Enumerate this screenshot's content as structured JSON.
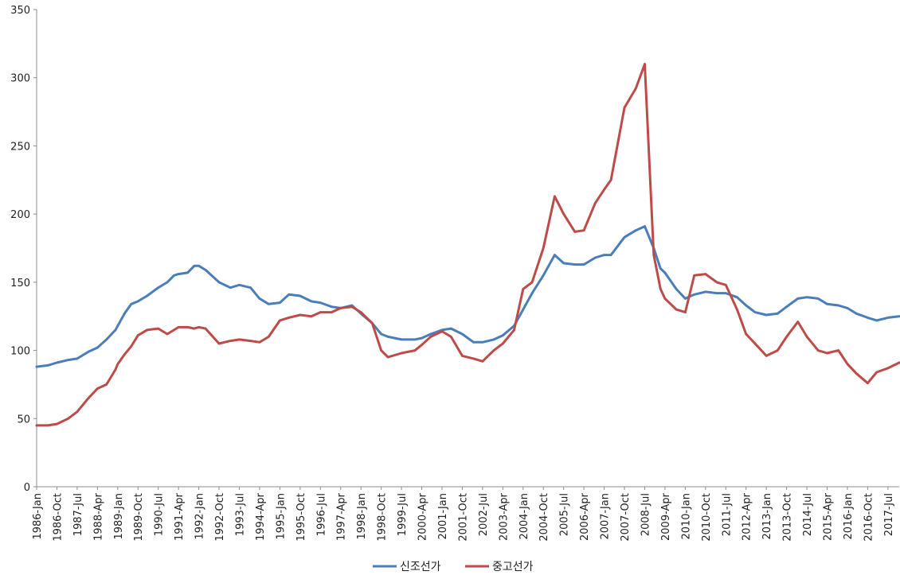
{
  "chart_data": {
    "type": "line",
    "title": "",
    "xlabel": "",
    "ylabel": "",
    "ylim": [
      0,
      350
    ],
    "yticks": [
      0,
      50,
      100,
      150,
      200,
      250,
      300,
      350
    ],
    "x_range": [
      "1986-Jan",
      "2017-Dec"
    ],
    "x_tick_labels": [
      "1986-Jan",
      "1986-Oct",
      "1987-Jul",
      "1988-Apr",
      "1989-Jan",
      "1989-Oct",
      "1990-Jul",
      "1991-Apr",
      "1992-Jan",
      "1992-Oct",
      "1993-Jul",
      "1994-Apr",
      "1995-Jan",
      "1995-Oct",
      "1996-Jul",
      "1997-Apr",
      "1998-Jan",
      "1998-Oct",
      "1999-Jul",
      "2000-Apr",
      "2001-Jan",
      "2001-Oct",
      "2002-Jul",
      "2003-Apr",
      "2004-Jan",
      "2004-Oct",
      "2005-Jul",
      "2006-Apr",
      "2007-Jan",
      "2007-Oct",
      "2008-Jul",
      "2009-Apr",
      "2010-Jan",
      "2010-Oct",
      "2011-Jul",
      "2012-Apr",
      "2013-Jan",
      "2013-Oct",
      "2014-Jul",
      "2015-Apr",
      "2016-Jan",
      "2016-Oct",
      "2017-Jul"
    ],
    "grid": false,
    "legend_position": "bottom",
    "series": [
      {
        "name": "신조선가",
        "color": "#4a7ebb",
        "points": [
          [
            "1986-Jan",
            88
          ],
          [
            "1986-Jun",
            89
          ],
          [
            "1986-Oct",
            91
          ],
          [
            "1987-Mar",
            93
          ],
          [
            "1987-Jul",
            94
          ],
          [
            "1987-Dec",
            99
          ],
          [
            "1988-Apr",
            102
          ],
          [
            "1988-Aug",
            108
          ],
          [
            "1988-Dec",
            115
          ],
          [
            "1989-Jan",
            118
          ],
          [
            "1989-Apr",
            127
          ],
          [
            "1989-Jul",
            134
          ],
          [
            "1989-Oct",
            136
          ],
          [
            "1990-Feb",
            140
          ],
          [
            "1990-Jul",
            146
          ],
          [
            "1990-Nov",
            150
          ],
          [
            "1991-Feb",
            155
          ],
          [
            "1991-Apr",
            156
          ],
          [
            "1991-Aug",
            157
          ],
          [
            "1991-Nov",
            162
          ],
          [
            "1992-Jan",
            162
          ],
          [
            "1992-Apr",
            159
          ],
          [
            "1992-Oct",
            150
          ],
          [
            "1993-Mar",
            146
          ],
          [
            "1993-Jul",
            148
          ],
          [
            "1993-Dec",
            146
          ],
          [
            "1994-Apr",
            138
          ],
          [
            "1994-Aug",
            134
          ],
          [
            "1995-Jan",
            135
          ],
          [
            "1995-May",
            141
          ],
          [
            "1995-Oct",
            140
          ],
          [
            "1996-Mar",
            136
          ],
          [
            "1996-Jul",
            135
          ],
          [
            "1996-Dec",
            132
          ],
          [
            "1997-Apr",
            131
          ],
          [
            "1997-Sep",
            133
          ],
          [
            "1998-Jan",
            127
          ],
          [
            "1998-Jun",
            120
          ],
          [
            "1998-Oct",
            112
          ],
          [
            "1999-Jan",
            110
          ],
          [
            "1999-Jul",
            108
          ],
          [
            "2000-Jan",
            108
          ],
          [
            "2000-Apr",
            109
          ],
          [
            "2000-Aug",
            112
          ],
          [
            "2001-Jan",
            115
          ],
          [
            "2001-May",
            116
          ],
          [
            "2001-Oct",
            112
          ],
          [
            "2002-Mar",
            106
          ],
          [
            "2002-Jul",
            106
          ],
          [
            "2002-Dec",
            108
          ],
          [
            "2003-Apr",
            111
          ],
          [
            "2003-Sep",
            118
          ],
          [
            "2004-Jan",
            130
          ],
          [
            "2004-May",
            142
          ],
          [
            "2004-Oct",
            155
          ],
          [
            "2005-Mar",
            170
          ],
          [
            "2005-Jul",
            164
          ],
          [
            "2005-Dec",
            163
          ],
          [
            "2006-Apr",
            163
          ],
          [
            "2006-Sep",
            168
          ],
          [
            "2007-Jan",
            170
          ],
          [
            "2007-Apr",
            170
          ],
          [
            "2007-Oct",
            183
          ],
          [
            "2008-Mar",
            188
          ],
          [
            "2008-Jul",
            191
          ],
          [
            "2008-Nov",
            175
          ],
          [
            "2009-Feb",
            160
          ],
          [
            "2009-Apr",
            157
          ],
          [
            "2009-Sep",
            145
          ],
          [
            "2010-Jan",
            138
          ],
          [
            "2010-May",
            141
          ],
          [
            "2010-Oct",
            143
          ],
          [
            "2011-Mar",
            142
          ],
          [
            "2011-Jul",
            142
          ],
          [
            "2011-Dec",
            139
          ],
          [
            "2012-Apr",
            133
          ],
          [
            "2012-Aug",
            128
          ],
          [
            "2013-Jan",
            126
          ],
          [
            "2013-Jun",
            127
          ],
          [
            "2013-Oct",
            132
          ],
          [
            "2014-Mar",
            138
          ],
          [
            "2014-Jul",
            139
          ],
          [
            "2014-Dec",
            138
          ],
          [
            "2015-Apr",
            134
          ],
          [
            "2015-Sep",
            133
          ],
          [
            "2016-Jan",
            131
          ],
          [
            "2016-May",
            127
          ],
          [
            "2016-Oct",
            124
          ],
          [
            "2017-Feb",
            122
          ],
          [
            "2017-Jul",
            124
          ],
          [
            "2017-Dec",
            125
          ]
        ]
      },
      {
        "name": "중고선가",
        "color": "#be4b48",
        "points": [
          [
            "1986-Jan",
            45
          ],
          [
            "1986-Jun",
            45
          ],
          [
            "1986-Oct",
            46
          ],
          [
            "1987-Mar",
            50
          ],
          [
            "1987-Jul",
            55
          ],
          [
            "1987-Dec",
            65
          ],
          [
            "1988-Apr",
            72
          ],
          [
            "1988-Aug",
            75
          ],
          [
            "1988-Dec",
            86
          ],
          [
            "1989-Jan",
            90
          ],
          [
            "1989-Apr",
            97
          ],
          [
            "1989-Jul",
            103
          ],
          [
            "1989-Oct",
            111
          ],
          [
            "1990-Feb",
            115
          ],
          [
            "1990-Jul",
            116
          ],
          [
            "1990-Nov",
            112
          ],
          [
            "1991-Feb",
            115
          ],
          [
            "1991-Apr",
            117
          ],
          [
            "1991-Aug",
            117
          ],
          [
            "1991-Nov",
            116
          ],
          [
            "1992-Jan",
            117
          ],
          [
            "1992-Apr",
            116
          ],
          [
            "1992-Oct",
            105
          ],
          [
            "1993-Mar",
            107
          ],
          [
            "1993-Jul",
            108
          ],
          [
            "1993-Dec",
            107
          ],
          [
            "1994-Apr",
            106
          ],
          [
            "1994-Aug",
            110
          ],
          [
            "1995-Jan",
            122
          ],
          [
            "1995-May",
            124
          ],
          [
            "1995-Oct",
            126
          ],
          [
            "1996-Mar",
            125
          ],
          [
            "1996-Jul",
            128
          ],
          [
            "1996-Dec",
            128
          ],
          [
            "1997-Apr",
            131
          ],
          [
            "1997-Sep",
            132
          ],
          [
            "1998-Jan",
            128
          ],
          [
            "1998-Jun",
            120
          ],
          [
            "1998-Oct",
            100
          ],
          [
            "1999-Jan",
            95
          ],
          [
            "1999-Jul",
            98
          ],
          [
            "2000-Jan",
            100
          ],
          [
            "2000-Apr",
            104
          ],
          [
            "2000-Aug",
            110
          ],
          [
            "2001-Jan",
            114
          ],
          [
            "2001-May",
            110
          ],
          [
            "2001-Oct",
            96
          ],
          [
            "2002-Mar",
            94
          ],
          [
            "2002-Jul",
            92
          ],
          [
            "2002-Dec",
            100
          ],
          [
            "2003-Apr",
            105
          ],
          [
            "2003-Sep",
            115
          ],
          [
            "2004-Jan",
            145
          ],
          [
            "2004-May",
            150
          ],
          [
            "2004-Oct",
            175
          ],
          [
            "2005-Mar",
            213
          ],
          [
            "2005-Jul",
            200
          ],
          [
            "2005-Dec",
            187
          ],
          [
            "2006-Apr",
            188
          ],
          [
            "2006-Sep",
            208
          ],
          [
            "2007-Jan",
            218
          ],
          [
            "2007-Apr",
            225
          ],
          [
            "2007-Oct",
            278
          ],
          [
            "2008-Mar",
            292
          ],
          [
            "2008-Jul",
            310
          ],
          [
            "2008-Nov",
            170
          ],
          [
            "2009-Feb",
            145
          ],
          [
            "2009-Apr",
            138
          ],
          [
            "2009-Sep",
            130
          ],
          [
            "2010-Jan",
            128
          ],
          [
            "2010-May",
            155
          ],
          [
            "2010-Oct",
            156
          ],
          [
            "2011-Mar",
            150
          ],
          [
            "2011-Jul",
            148
          ],
          [
            "2011-Dec",
            130
          ],
          [
            "2012-Apr",
            112
          ],
          [
            "2012-Aug",
            105
          ],
          [
            "2013-Jan",
            96
          ],
          [
            "2013-Jun",
            100
          ],
          [
            "2013-Oct",
            110
          ],
          [
            "2014-Mar",
            121
          ],
          [
            "2014-Jul",
            110
          ],
          [
            "2014-Dec",
            100
          ],
          [
            "2015-Apr",
            98
          ],
          [
            "2015-Sep",
            100
          ],
          [
            "2016-Jan",
            90
          ],
          [
            "2016-May",
            83
          ],
          [
            "2016-Oct",
            76
          ],
          [
            "2017-Feb",
            84
          ],
          [
            "2017-Jul",
            87
          ],
          [
            "2017-Dec",
            91
          ]
        ]
      }
    ]
  }
}
